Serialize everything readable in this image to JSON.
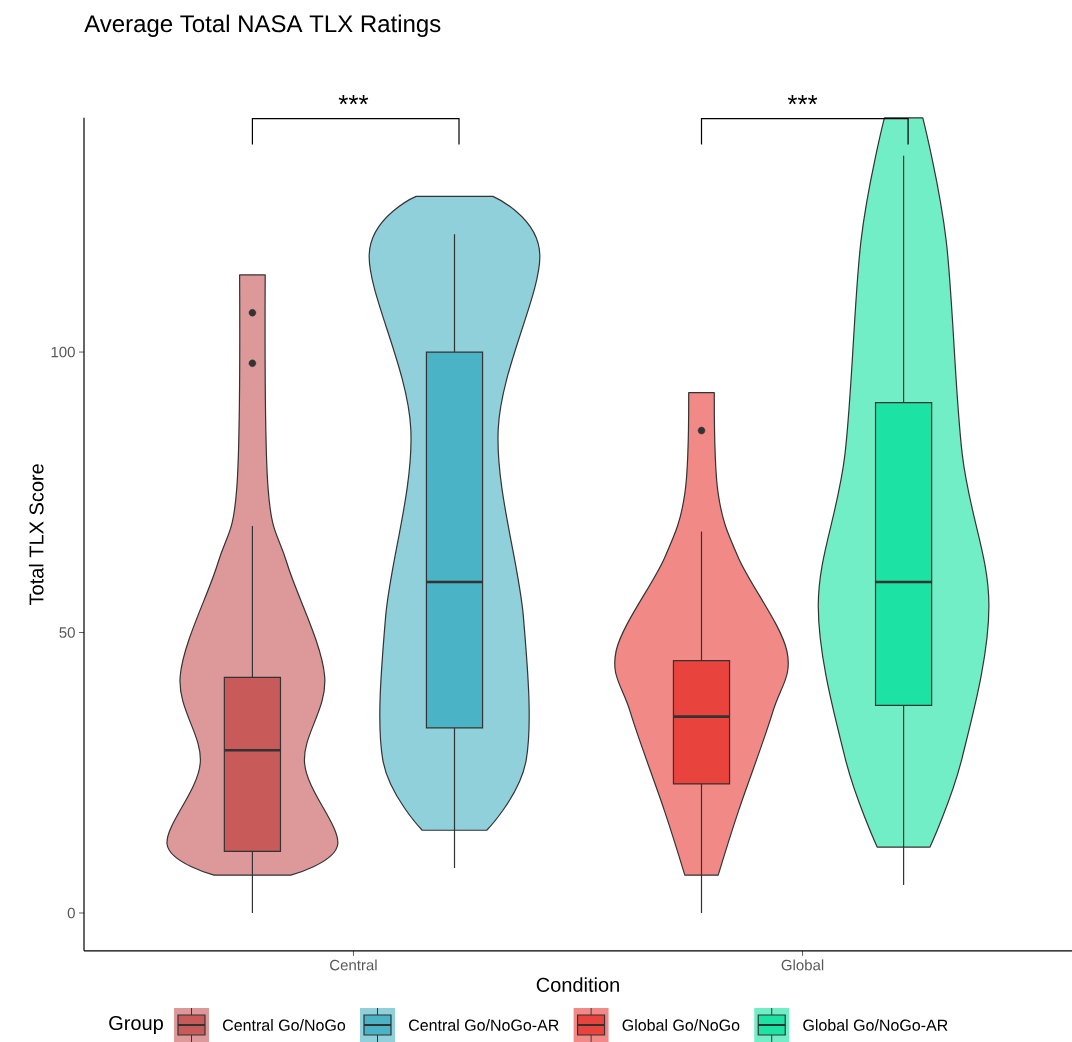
{
  "chart_data": {
    "type": "box",
    "title": "Average Total NASA TLX Ratings",
    "xlabel": "Condition",
    "ylabel": "Total TLX Score",
    "legend_title": "Group",
    "legend": "bottom",
    "categories": [
      "Central",
      "Global"
    ],
    "ylim": [
      -6.75,
      141.75
    ],
    "yticks": [
      0,
      50,
      100
    ],
    "series": [
      {
        "name": "Central Go/NoGo",
        "color": "#c85a5a",
        "boxes": [
          {
            "low": 0,
            "q1": 11,
            "median": 29,
            "q3": 42,
            "high": 69,
            "outliers": [
              98,
              107
            ]
          },
          null
        ]
      },
      {
        "name": "Central Go/NoGo-AR",
        "color": "#4ab3c5",
        "boxes": [
          {
            "low": 8,
            "q1": 33,
            "median": 59,
            "q3": 100,
            "high": 121
          },
          null
        ]
      },
      {
        "name": "Global Go/NoGo",
        "color": "#e8433d",
        "boxes": [
          null,
          {
            "low": 0,
            "q1": 23,
            "median": 35,
            "q3": 45,
            "high": 68,
            "outliers": [
              86
            ]
          }
        ]
      },
      {
        "name": "Global Go/NoGo-AR",
        "color": "#1ce3a3",
        "boxes": [
          null,
          {
            "low": 5,
            "q1": 37,
            "median": 59,
            "q3": 91,
            "high": 135
          }
        ]
      }
    ],
    "annotations": [
      "***",
      "***"
    ]
  }
}
